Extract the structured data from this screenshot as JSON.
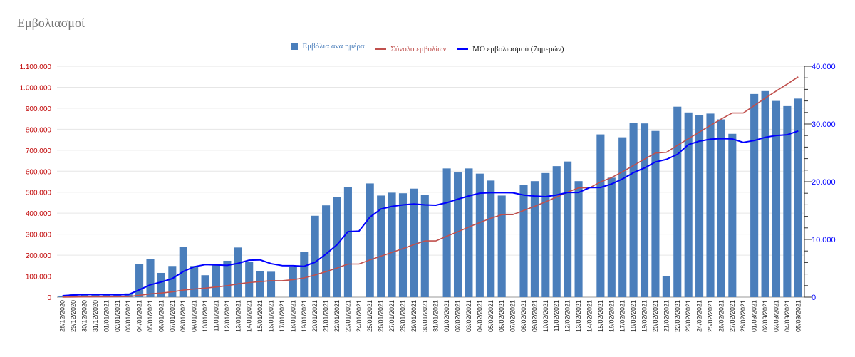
{
  "title": "Εμβολιασμοί",
  "colors": {
    "bars": "#4a7ebb",
    "total": "#c0504d",
    "avg": "#0000ff",
    "left_axis": "#c00000",
    "right_axis": "#0000ff"
  },
  "legend": {
    "bars": "Εμβόλια ανά ημέρα",
    "total": "Σύνολο εμβολίων",
    "avg": "ΜΟ εμβολιασμού (7ημερών)"
  },
  "chart_data": {
    "type": "bar",
    "title": "Εμβολιασμοί",
    "categories": [
      "28/12/2020",
      "29/12/2020",
      "30/12/2020",
      "31/12/2020",
      "01/01/2021",
      "02/01/2021",
      "03/01/2021",
      "04/01/2021",
      "05/01/2021",
      "06/01/2021",
      "07/01/2021",
      "08/01/2021",
      "09/01/2021",
      "10/01/2021",
      "11/01/2021",
      "12/01/2021",
      "13/01/2021",
      "14/01/2021",
      "15/01/2021",
      "16/01/2021",
      "17/01/2021",
      "18/01/2021",
      "19/01/2021",
      "20/01/2021",
      "21/01/2021",
      "22/01/2021",
      "23/01/2021",
      "24/01/2021",
      "25/01/2021",
      "26/01/2021",
      "27/01/2021",
      "28/01/2021",
      "29/01/2021",
      "30/01/2021",
      "31/01/2021",
      "01/02/2021",
      "02/02/2021",
      "03/02/2021",
      "04/02/2021",
      "05/02/2021",
      "06/02/2021",
      "07/02/2021",
      "08/02/2021",
      "09/02/2021",
      "10/02/2021",
      "11/02/2021",
      "12/02/2021",
      "13/02/2021",
      "14/02/2021",
      "15/02/2021",
      "16/02/2021",
      "17/02/2021",
      "18/02/2021",
      "19/02/2021",
      "20/02/2021",
      "21/02/2021",
      "22/02/2021",
      "23/02/2021",
      "24/02/2021",
      "25/02/2021",
      "26/02/2021",
      "27/02/2021",
      "28/02/2021",
      "01/03/2021",
      "02/03/2021",
      "03/03/2021",
      "04/03/2021",
      "05/03/2021"
    ],
    "series": [
      {
        "name": "Εμβόλια ανά ημέρα",
        "type": "bar",
        "axis": "right",
        "values": [
          250,
          500,
          600,
          450,
          350,
          350,
          650,
          5700,
          6600,
          4200,
          5400,
          8700,
          5400,
          3800,
          5500,
          6300,
          8600,
          6100,
          4500,
          4400,
          0,
          5300,
          7900,
          14100,
          15900,
          17300,
          19100,
          0,
          19700,
          17600,
          18100,
          18000,
          18800,
          17700,
          0,
          22300,
          21600,
          22300,
          21400,
          20200,
          17600,
          0,
          19500,
          20100,
          21500,
          22700,
          23500,
          20100,
          0,
          28200,
          20700,
          27700,
          30200,
          30100,
          28800,
          3700,
          33000,
          32000,
          31500,
          31800,
          30800,
          28300,
          0,
          35200,
          35700,
          34000,
          33100,
          34400
        ]
      },
      {
        "name": "Σύνολο εμβολίων",
        "type": "line",
        "axis": "left",
        "values": [
          250,
          750,
          1350,
          1800,
          2150,
          2500,
          3150,
          8850,
          15450,
          19650,
          25050,
          33750,
          39150,
          42950,
          48450,
          54750,
          63350,
          69450,
          73950,
          78350,
          78350,
          83650,
          91550,
          105650,
          121550,
          138850,
          157950,
          157950,
          177650,
          195250,
          213350,
          231350,
          250150,
          267850,
          267850,
          290150,
          311750,
          334050,
          355450,
          375650,
          393250,
          393250,
          412750,
          432850,
          454350,
          477050,
          500550,
          520650,
          520650,
          548850,
          569550,
          597250,
          627450,
          657550,
          686350,
          690050,
          723050,
          755050,
          786550,
          818350,
          849150,
          877450,
          877450,
          912650,
          948350,
          982350,
          1015450,
          1049850
        ]
      },
      {
        "name": "ΜΟ εμβολιασμού (7ημερών)",
        "type": "line",
        "axis": "right",
        "values": [
          250,
          375,
          450,
          450,
          430,
          420,
          450,
          1270,
          2130,
          2630,
          3210,
          4450,
          5270,
          5640,
          5590,
          5500,
          5860,
          6410,
          6460,
          5800,
          5470,
          5440,
          5350,
          6050,
          7480,
          9070,
          11360,
          11430,
          13870,
          15270,
          15730,
          15990,
          16140,
          15990,
          15930,
          16370,
          16970,
          17530,
          18010,
          18100,
          18120,
          18090,
          17690,
          17520,
          17410,
          17700,
          18130,
          18130,
          18980,
          19000,
          19600,
          20480,
          21580,
          22380,
          23420,
          23880,
          24740,
          26430,
          27030,
          27370,
          27470,
          27420,
          26810,
          27130,
          27690,
          28010,
          28140,
          28790
        ]
      }
    ],
    "y_left": {
      "ylim": [
        0,
        1100000
      ],
      "ticks": [
        "0",
        "100.000",
        "200.000",
        "300.000",
        "400.000",
        "500.000",
        "600.000",
        "700.000",
        "800.000",
        "900.000",
        "1.000.000",
        "1.100.000"
      ]
    },
    "y_right": {
      "ylim": [
        0,
        40000
      ],
      "ticks": [
        "0",
        "10.000",
        "20.000",
        "30.000",
        "40.000"
      ]
    },
    "grid": true,
    "legend_position": "top"
  }
}
